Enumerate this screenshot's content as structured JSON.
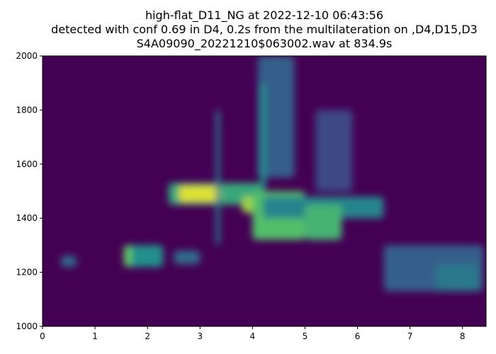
{
  "chart_data": {
    "type": "heatmap",
    "title_lines": [
      "high-flat_D11_NG at 2022-12-10 06:43:56",
      "detected with conf 0.69 in D4, 0.2s from the multilateration on ,D4,D15,D3",
      "S4A09090_20221210$063002.wav at 834.9s"
    ],
    "xlabel": "",
    "ylabel": "",
    "xlim": [
      0,
      8.45
    ],
    "ylim": [
      1000,
      2000
    ],
    "xticks": [
      "0",
      "1",
      "2",
      "3",
      "4",
      "5",
      "6",
      "7",
      "8"
    ],
    "yticks": [
      "1000",
      "1200",
      "1400",
      "1600",
      "1800",
      "2000"
    ],
    "colormap": "viridis",
    "background_color": "#440154",
    "energy_regions": [
      {
        "t": [
          0.35,
          0.65
        ],
        "f": [
          1220,
          1260
        ],
        "level": 0.35
      },
      {
        "t": [
          1.55,
          2.3
        ],
        "f": [
          1220,
          1300
        ],
        "level": 0.5
      },
      {
        "t": [
          1.55,
          1.7
        ],
        "f": [
          1220,
          1300
        ],
        "level": 0.75
      },
      {
        "t": [
          2.5,
          3.0
        ],
        "f": [
          1230,
          1280
        ],
        "level": 0.35
      },
      {
        "t": [
          2.4,
          4.2
        ],
        "f": [
          1450,
          1530
        ],
        "level": 0.6
      },
      {
        "t": [
          2.6,
          3.4
        ],
        "f": [
          1460,
          1520
        ],
        "level": 0.95
      },
      {
        "t": [
          3.8,
          4.2
        ],
        "f": [
          1420,
          1480
        ],
        "level": 0.85
      },
      {
        "t": [
          4.0,
          5.0
        ],
        "f": [
          1320,
          1500
        ],
        "level": 0.7
      },
      {
        "t": [
          4.1,
          4.8
        ],
        "f": [
          1550,
          2000
        ],
        "level": 0.3
      },
      {
        "t": [
          4.2,
          6.5
        ],
        "f": [
          1400,
          1480
        ],
        "level": 0.45
      },
      {
        "t": [
          5.0,
          5.7
        ],
        "f": [
          1320,
          1450
        ],
        "level": 0.65
      },
      {
        "t": [
          5.2,
          5.9
        ],
        "f": [
          1500,
          1800
        ],
        "level": 0.22
      },
      {
        "t": [
          6.5,
          8.4
        ],
        "f": [
          1130,
          1300
        ],
        "level": 0.3
      },
      {
        "t": [
          7.5,
          8.3
        ],
        "f": [
          1130,
          1230
        ],
        "level": 0.4
      },
      {
        "t": [
          3.3,
          3.38
        ],
        "f": [
          1300,
          1800
        ],
        "level": 0.4
      },
      {
        "t": [
          4.15,
          4.25
        ],
        "f": [
          1500,
          1900
        ],
        "level": 0.5
      }
    ]
  }
}
